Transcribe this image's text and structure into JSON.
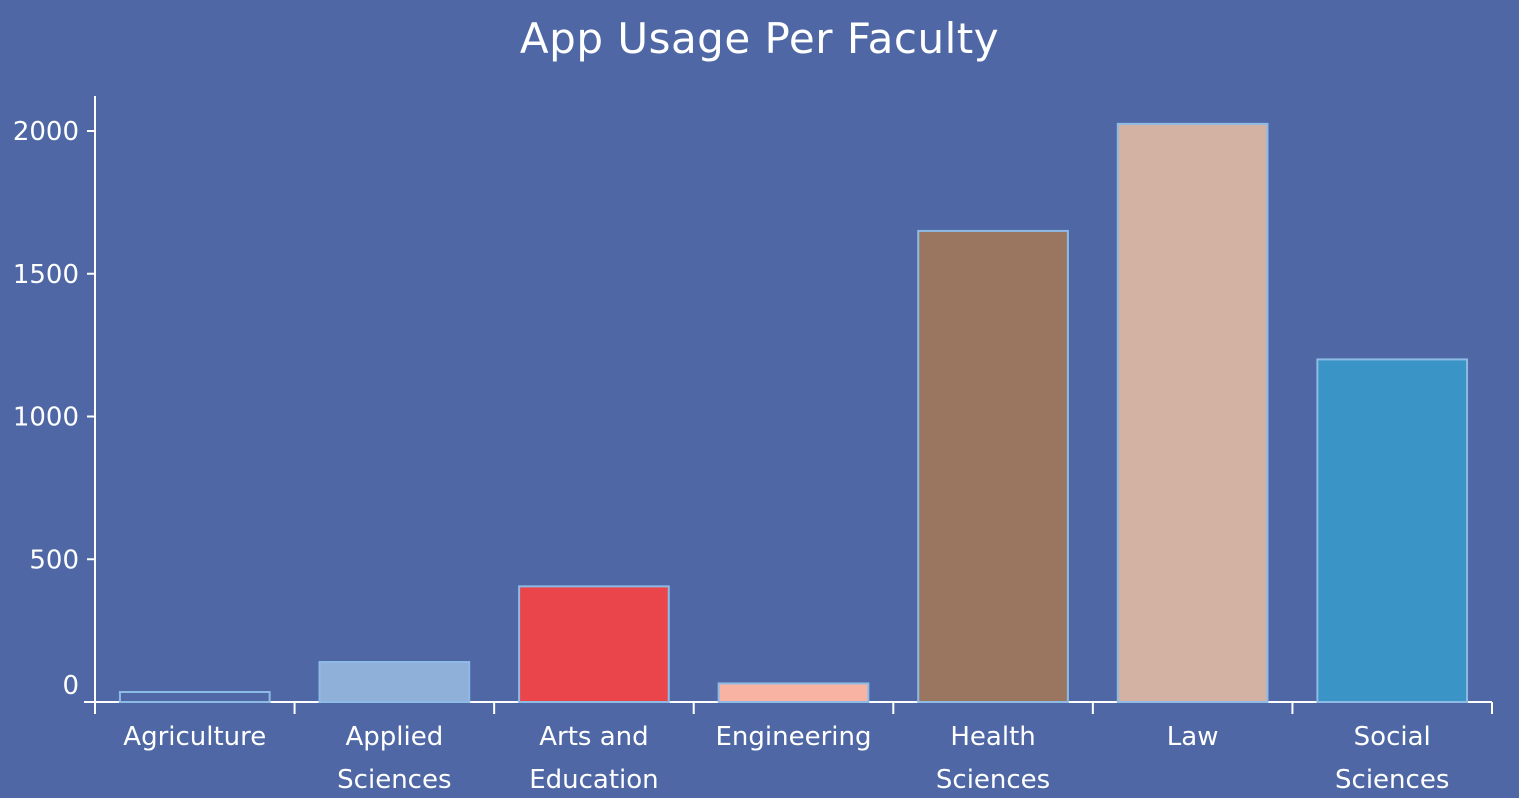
{
  "chart_data": {
    "type": "bar",
    "title": "App Usage Per Faculty",
    "xlabel": "",
    "ylabel": "",
    "ylim": [
      0,
      2000
    ],
    "yticks": [
      0,
      500,
      1000,
      1500,
      2000
    ],
    "grid": false,
    "categories": [
      [
        "Agriculture"
      ],
      [
        "Applied",
        "Sciences"
      ],
      [
        "Arts and",
        "Education"
      ],
      [
        "Engineering"
      ],
      [
        "Health",
        "Sciences"
      ],
      [
        "Law"
      ],
      [
        "Social",
        "Sciences"
      ]
    ],
    "values": [
      35,
      140,
      405,
      65,
      1650,
      2025,
      1200
    ],
    "colors": [
      "#4f68a5",
      "#8fb0d8",
      "#e9454a",
      "#f9b3a3",
      "#9a7660",
      "#d4b2a3",
      "#3a94c5"
    ]
  }
}
